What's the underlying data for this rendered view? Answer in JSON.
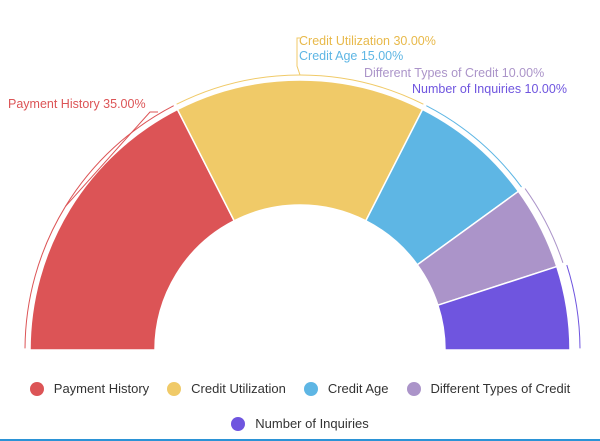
{
  "chart_data": {
    "type": "pie",
    "subtype": "semi-donut",
    "categories": [
      "Payment History",
      "Credit Utilization",
      "Credit Age",
      "Different Types of Credit",
      "Number of Inquiries"
    ],
    "values": [
      35,
      30,
      15,
      10,
      10
    ],
    "unit": "%",
    "colors": [
      "#dc5456",
      "#f0ca68",
      "#5eb6e4",
      "#ab94c9",
      "#6f55df"
    ],
    "labels": [
      "Payment History 35.00%",
      "Credit Utilization 30.00%",
      "Credit Age 15.00%",
      "Different Types of Credit 10.00%",
      "Number of Inquiries 10.00%"
    ],
    "legend_placement": "bottom"
  }
}
